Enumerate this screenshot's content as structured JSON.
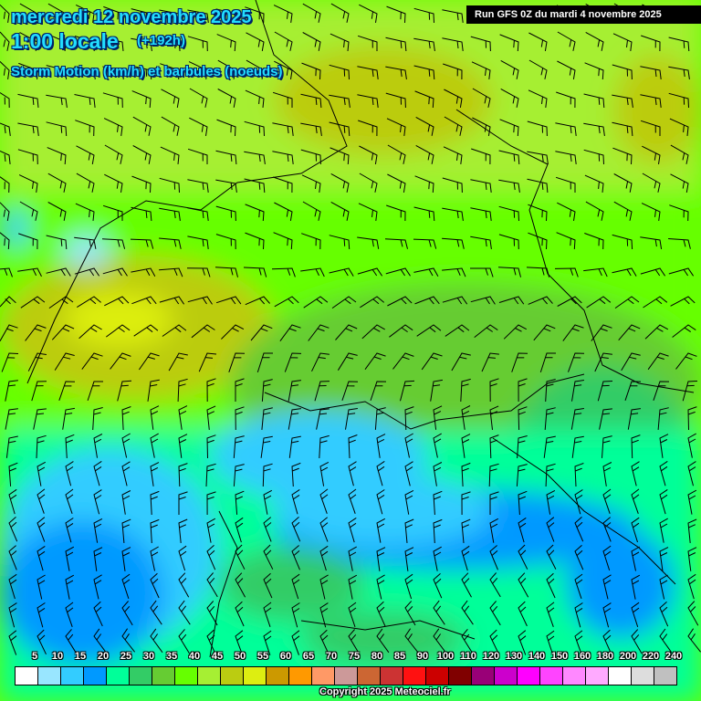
{
  "header": {
    "date": "mercredi 12 novembre 2025",
    "time": "1:00 locale",
    "lead": "(+192h)",
    "parameter": "Storm Motion (km/h) et barbules (noeuds)",
    "run": "Run GFS 0Z du mardi 4 novembre 2025"
  },
  "legend": {
    "labels": [
      "5",
      "10",
      "15",
      "20",
      "25",
      "30",
      "35",
      "40",
      "45",
      "50",
      "55",
      "60",
      "65",
      "70",
      "75",
      "80",
      "85",
      "90",
      "100",
      "110",
      "120",
      "130",
      "140",
      "150",
      "160",
      "180",
      "200",
      "220",
      "240"
    ],
    "colors": [
      "#ffffff",
      "#99e6ff",
      "#33ccff",
      "#0099ff",
      "#00ff99",
      "#33cc66",
      "#66cc33",
      "#66ff00",
      "#a6ef33",
      "#bbcc11",
      "#ddee11",
      "#cc9900",
      "#ff9900",
      "#ff9966",
      "#cc9999",
      "#cc6633",
      "#cc3333",
      "#ff1111",
      "#cc0000",
      "#800000",
      "#990077",
      "#cc00cc",
      "#ff00ff",
      "#ff44ff",
      "#ff88ff",
      "#ffaaff",
      "#ffffff",
      "#dddddd",
      "#c0c0c0"
    ]
  },
  "footer": {
    "copyright": "Copyright 2025 Meteociel.fr"
  }
}
